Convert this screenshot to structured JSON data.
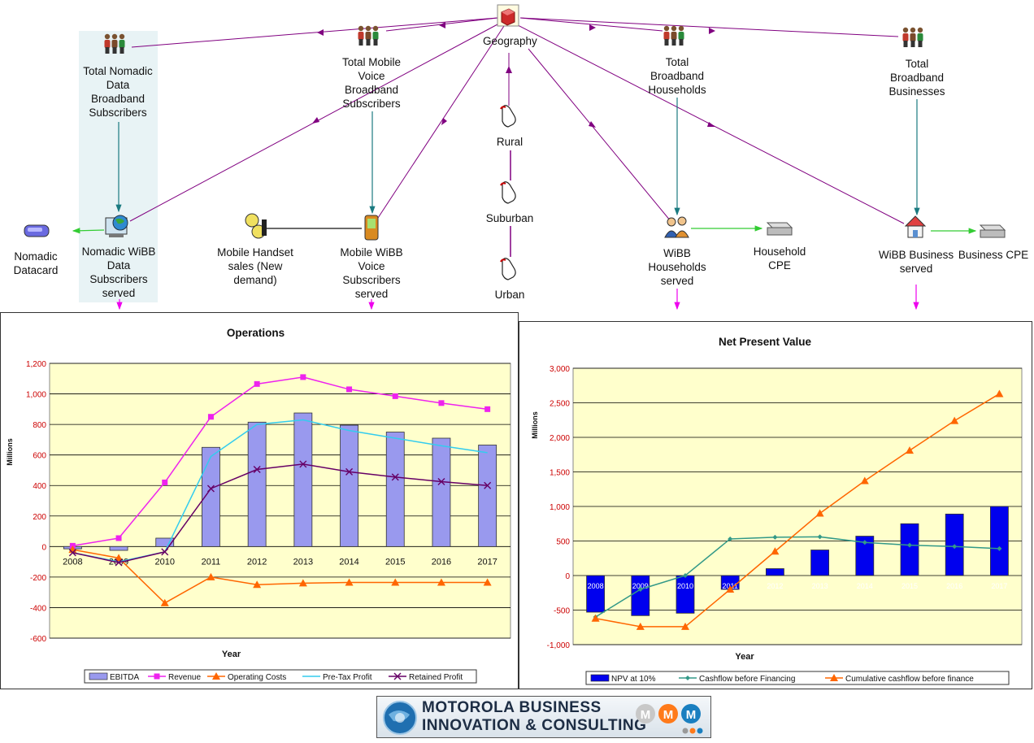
{
  "diagram": {
    "nodes": {
      "geography": "Geography",
      "total_nomadic": "Total Nomadic\nData\nBroadband\nSubscribers",
      "total_mobile": "Total Mobile\nVoice\nBroadband\nSubscribers",
      "total_households": "Total\nBroadband\nHouseholds",
      "total_businesses": "Total\nBroadband\nBusinesses",
      "rural": "Rural",
      "suburban": "Suburban",
      "urban": "Urban",
      "nomadic_datacard": "Nomadic\nDatacard",
      "nomadic_served": "Nomadic WiBB\nData\nSubscribers\nserved",
      "handset_sales": "Mobile Handset\nsales (New\ndemand)",
      "mobile_served": "Mobile WiBB\nVoice\nSubscribers\nserved",
      "households_served": "WiBB\nHouseholds\nserved",
      "household_cpe": "Household\nCPE",
      "business_served": "WiBB Business\nserved",
      "business_cpe": "Business CPE"
    }
  },
  "chart_data": [
    {
      "type": "bar",
      "title": "Operations",
      "xlabel": "Year",
      "ylabel": "Millions",
      "ylim": [
        -600,
        1200
      ],
      "yticks": [
        "1,200",
        "1,000",
        "800",
        "600",
        "400",
        "200",
        "0",
        "-200",
        "-400",
        "-600"
      ],
      "categories": [
        "2008",
        "2009",
        "2010",
        "2011",
        "2012",
        "2013",
        "2014",
        "2015",
        "2016",
        "2017"
      ],
      "legend_position": "bottom",
      "series": [
        {
          "name": "EBITDA",
          "kind": "bar",
          "color": "#9999ee",
          "values": [
            -15,
            -25,
            55,
            650,
            815,
            875,
            795,
            750,
            710,
            665
          ]
        },
        {
          "name": "Revenue",
          "kind": "line",
          "marker": "square",
          "color": "#ee22ee",
          "values": [
            5,
            55,
            420,
            850,
            1065,
            1110,
            1030,
            985,
            940,
            900
          ]
        },
        {
          "name": "Operating Costs",
          "kind": "line",
          "marker": "triangle",
          "color": "#ff6600",
          "values": [
            -20,
            -75,
            -370,
            -200,
            -250,
            -240,
            -235,
            -235,
            -235,
            -235
          ]
        },
        {
          "name": "Pre-Tax Profit",
          "kind": "line",
          "marker": "none",
          "color": "#33ccee",
          "values": [
            -40,
            -100,
            -35,
            590,
            800,
            830,
            760,
            710,
            660,
            615
          ]
        },
        {
          "name": "Retained Profit",
          "kind": "line",
          "marker": "x",
          "color": "#660066",
          "values": [
            -40,
            -105,
            -35,
            380,
            505,
            540,
            490,
            455,
            425,
            400
          ]
        }
      ]
    },
    {
      "type": "bar",
      "title": "Net Present Value",
      "xlabel": "Year",
      "ylabel": "Millions",
      "ylim": [
        -1000,
        3000
      ],
      "yticks": [
        "3,000",
        "2,500",
        "2,000",
        "1,500",
        "1,000",
        "500",
        "0",
        "-500",
        "-1,000"
      ],
      "categories": [
        "2008",
        "2009",
        "2010",
        "2011",
        "2012",
        "2013",
        "2014",
        "2015",
        "2016",
        "2017"
      ],
      "legend_position": "bottom",
      "series": [
        {
          "name": "NPV at 10%",
          "kind": "bar",
          "color": "#0000ee",
          "values": [
            -530,
            -580,
            -545,
            -200,
            100,
            370,
            570,
            750,
            890,
            1000
          ]
        },
        {
          "name": "Cashflow before Financing",
          "kind": "line",
          "marker": "diamond",
          "color": "#339988",
          "values": [
            -600,
            -200,
            0,
            530,
            555,
            560,
            480,
            440,
            420,
            390
          ]
        },
        {
          "name": "Cumulative cashflow before finance",
          "kind": "line",
          "marker": "triangle",
          "color": "#ff6600",
          "values": [
            -620,
            -740,
            -740,
            -200,
            350,
            900,
            1370,
            1810,
            2240,
            2630
          ]
        }
      ]
    }
  ],
  "logo": {
    "line1": "MOTOROLA BUSINESS",
    "line2": "INNOVATION & CONSULTING"
  },
  "colors": {
    "purple_link": "#800080",
    "teal_link": "#1a7a80",
    "green_link": "#33cc33",
    "magenta_link": "#ee00ee",
    "plot_bg": "#ffffcc"
  }
}
